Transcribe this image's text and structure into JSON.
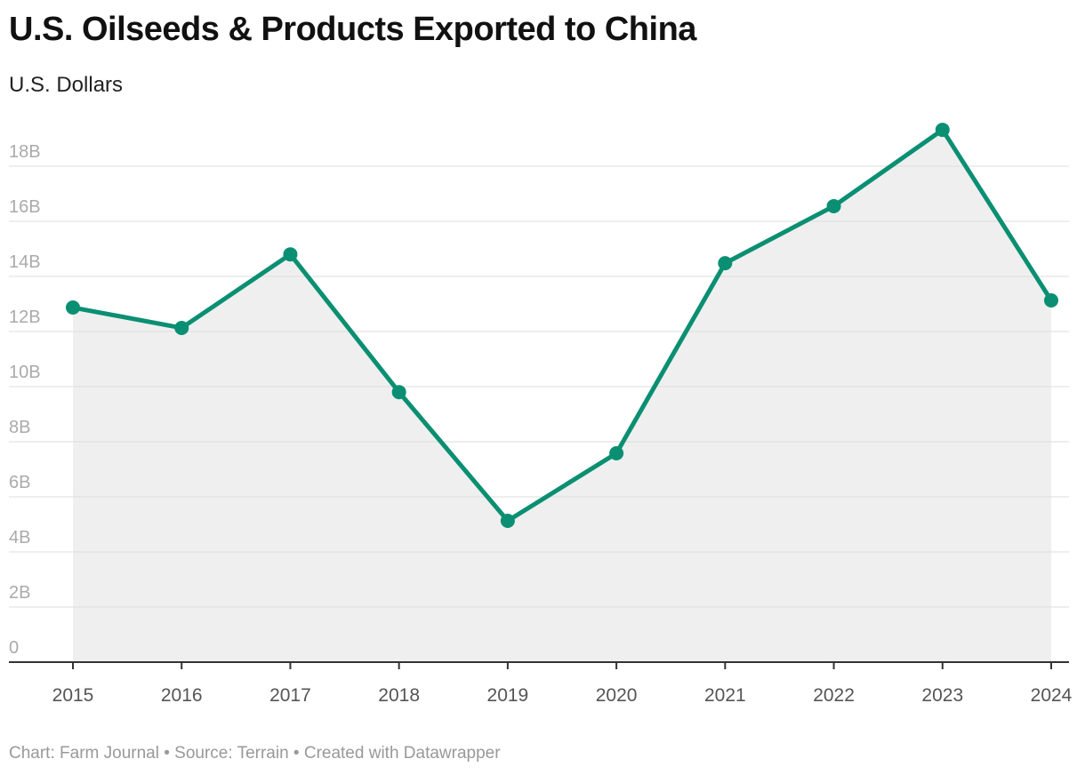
{
  "chart_data": {
    "type": "line",
    "title": "U.S. Oilseeds & Products Exported to China",
    "subtitle": "U.S. Dollars",
    "categories": [
      "2015",
      "2016",
      "2017",
      "2018",
      "2019",
      "2020",
      "2021",
      "2022",
      "2023",
      "2024"
    ],
    "values": [
      12.87,
      12.13,
      14.8,
      9.8,
      5.13,
      7.58,
      14.48,
      16.55,
      19.32,
      13.13
    ],
    "value_unit": "billion USD",
    "ylim": [
      0,
      18
    ],
    "yticks": [
      0,
      2,
      4,
      6,
      8,
      10,
      12,
      14,
      16,
      18
    ],
    "ytick_labels": [
      "0",
      "2B",
      "4B",
      "6B",
      "8B",
      "10B",
      "12B",
      "14B",
      "16B",
      "18B"
    ],
    "grid": true,
    "line_color": "#0a8f72",
    "area_color": "#efefef"
  },
  "footer": "Chart: Farm Journal • Source: Terrain • Created with Datawrapper"
}
